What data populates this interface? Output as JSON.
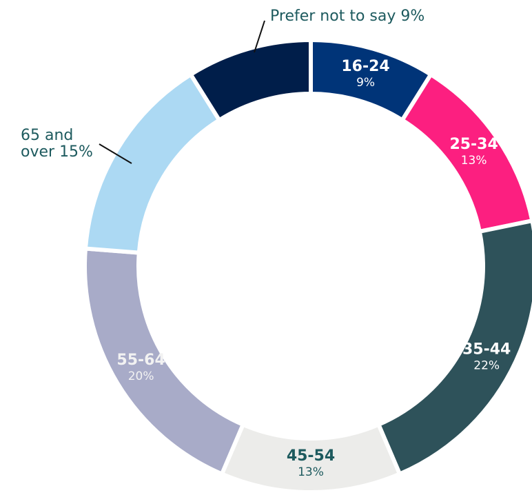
{
  "chart_data": {
    "type": "donut",
    "categories": [
      "16-24",
      "25-34",
      "35-44",
      "45-54",
      "55-64",
      "65 and over",
      "Prefer not to say"
    ],
    "values": [
      9,
      13,
      22,
      13,
      20,
      15,
      9
    ],
    "value_labels": [
      "9%",
      "13%",
      "22%",
      "13%",
      "20%",
      "15%",
      "9%"
    ],
    "colors": [
      "#003478",
      "#fc1f80",
      "#2e525a",
      "#ececea",
      "#a8abc8",
      "#acd9f3",
      "#001e4a"
    ]
  }
}
